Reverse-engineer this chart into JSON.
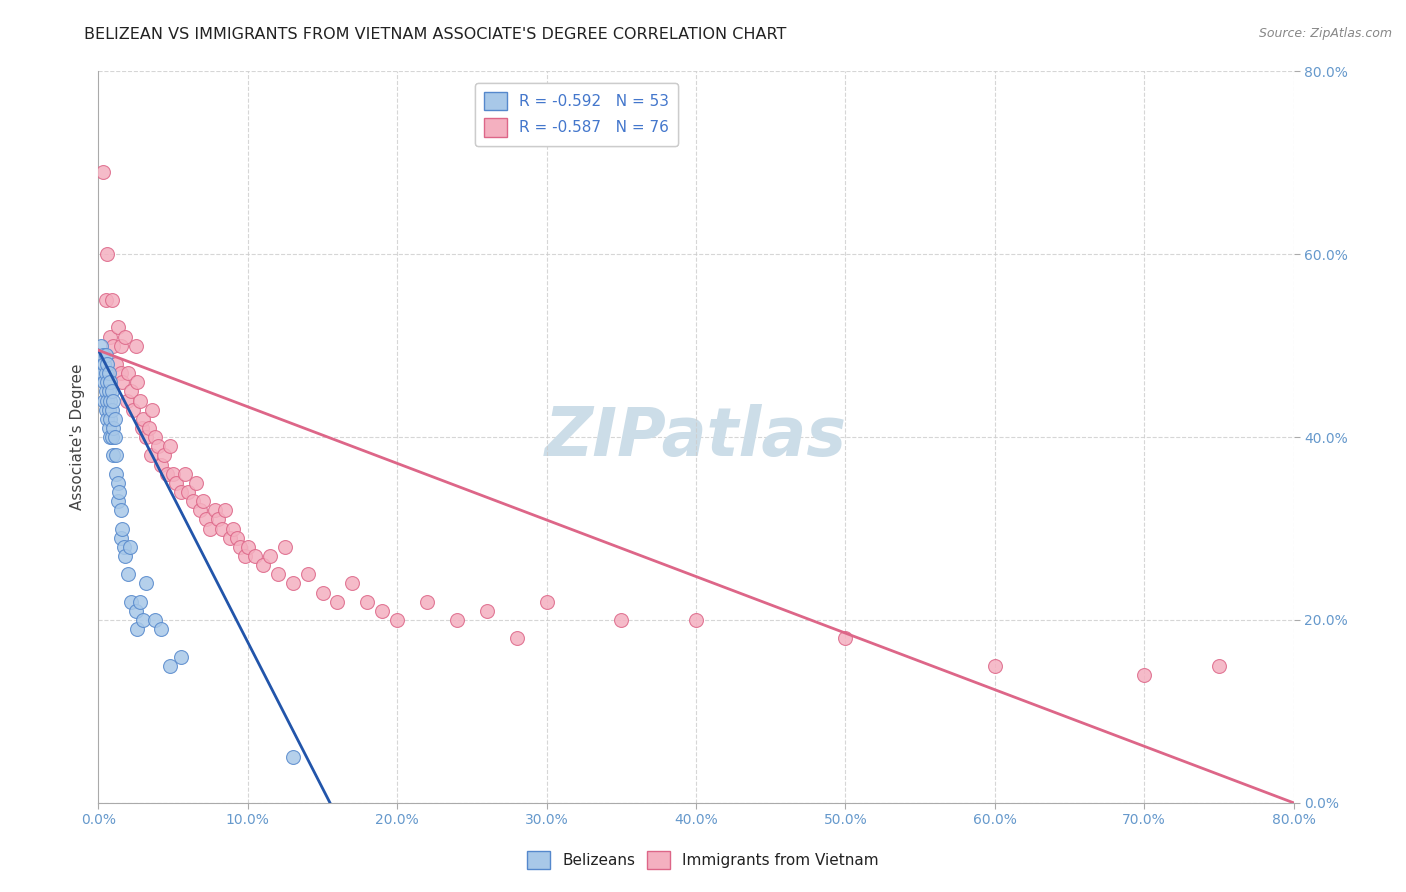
{
  "title": "BELIZEAN VS IMMIGRANTS FROM VIETNAM ASSOCIATE'S DEGREE CORRELATION CHART",
  "source": "Source: ZipAtlas.com",
  "ylabel": "Associate's Degree",
  "x_tick_labels": [
    "0.0%",
    "10.0%",
    "20.0%",
    "30.0%",
    "40.0%",
    "50.0%",
    "60.0%",
    "70.0%",
    "80.0%"
  ],
  "y_tick_labels": [
    "0.0%",
    "20.0%",
    "40.0%",
    "60.0%",
    "80.0%"
  ],
  "x_ticks": [
    0.0,
    0.1,
    0.2,
    0.3,
    0.4,
    0.5,
    0.6,
    0.7,
    0.8
  ],
  "y_ticks": [
    0.0,
    0.2,
    0.4,
    0.6,
    0.8
  ],
  "x_min": 0.0,
  "x_max": 0.8,
  "y_min": 0.0,
  "y_max": 0.8,
  "watermark": "ZIPatlas",
  "belizeans": {
    "color": "#a8c8e8",
    "edge_color": "#5588cc",
    "R": -0.592,
    "N": 53,
    "x": [
      0.002,
      0.003,
      0.003,
      0.004,
      0.004,
      0.004,
      0.005,
      0.005,
      0.005,
      0.005,
      0.006,
      0.006,
      0.006,
      0.006,
      0.007,
      0.007,
      0.007,
      0.007,
      0.008,
      0.008,
      0.008,
      0.008,
      0.009,
      0.009,
      0.009,
      0.01,
      0.01,
      0.01,
      0.011,
      0.011,
      0.012,
      0.012,
      0.013,
      0.013,
      0.014,
      0.015,
      0.015,
      0.016,
      0.017,
      0.018,
      0.02,
      0.021,
      0.022,
      0.025,
      0.026,
      0.028,
      0.03,
      0.032,
      0.038,
      0.042,
      0.048,
      0.055,
      0.13
    ],
    "y": [
      0.5,
      0.49,
      0.47,
      0.48,
      0.46,
      0.44,
      0.49,
      0.47,
      0.45,
      0.43,
      0.48,
      0.46,
      0.44,
      0.42,
      0.47,
      0.45,
      0.43,
      0.41,
      0.46,
      0.44,
      0.42,
      0.4,
      0.45,
      0.43,
      0.4,
      0.44,
      0.41,
      0.38,
      0.42,
      0.4,
      0.38,
      0.36,
      0.35,
      0.33,
      0.34,
      0.32,
      0.29,
      0.3,
      0.28,
      0.27,
      0.25,
      0.28,
      0.22,
      0.21,
      0.19,
      0.22,
      0.2,
      0.24,
      0.2,
      0.19,
      0.15,
      0.16,
      0.05
    ],
    "trendline_x": [
      0.0,
      0.155
    ],
    "trendline_y": [
      0.495,
      0.0
    ],
    "trend_color": "#2255aa"
  },
  "vietnam": {
    "color": "#f4b0c0",
    "edge_color": "#dd6688",
    "R": -0.587,
    "N": 76,
    "x": [
      0.003,
      0.005,
      0.006,
      0.008,
      0.009,
      0.01,
      0.012,
      0.013,
      0.015,
      0.015,
      0.016,
      0.018,
      0.019,
      0.02,
      0.022,
      0.023,
      0.025,
      0.026,
      0.028,
      0.029,
      0.03,
      0.032,
      0.034,
      0.035,
      0.036,
      0.038,
      0.04,
      0.042,
      0.044,
      0.046,
      0.048,
      0.05,
      0.052,
      0.055,
      0.058,
      0.06,
      0.063,
      0.065,
      0.068,
      0.07,
      0.072,
      0.075,
      0.078,
      0.08,
      0.083,
      0.085,
      0.088,
      0.09,
      0.093,
      0.095,
      0.098,
      0.1,
      0.105,
      0.11,
      0.115,
      0.12,
      0.125,
      0.13,
      0.14,
      0.15,
      0.16,
      0.17,
      0.18,
      0.19,
      0.2,
      0.22,
      0.24,
      0.26,
      0.28,
      0.3,
      0.35,
      0.4,
      0.5,
      0.6,
      0.7,
      0.75
    ],
    "y": [
      0.69,
      0.55,
      0.6,
      0.51,
      0.55,
      0.5,
      0.48,
      0.52,
      0.47,
      0.5,
      0.46,
      0.51,
      0.44,
      0.47,
      0.45,
      0.43,
      0.5,
      0.46,
      0.44,
      0.41,
      0.42,
      0.4,
      0.41,
      0.38,
      0.43,
      0.4,
      0.39,
      0.37,
      0.38,
      0.36,
      0.39,
      0.36,
      0.35,
      0.34,
      0.36,
      0.34,
      0.33,
      0.35,
      0.32,
      0.33,
      0.31,
      0.3,
      0.32,
      0.31,
      0.3,
      0.32,
      0.29,
      0.3,
      0.29,
      0.28,
      0.27,
      0.28,
      0.27,
      0.26,
      0.27,
      0.25,
      0.28,
      0.24,
      0.25,
      0.23,
      0.22,
      0.24,
      0.22,
      0.21,
      0.2,
      0.22,
      0.2,
      0.21,
      0.18,
      0.22,
      0.2,
      0.2,
      0.18,
      0.15,
      0.14,
      0.15
    ],
    "trendline_x": [
      0.0,
      0.8
    ],
    "trendline_y": [
      0.495,
      0.0
    ],
    "trend_color": "#dd6688"
  },
  "background_color": "#ffffff",
  "grid_color": "#cccccc",
  "title_fontsize": 11.5,
  "axis_label_fontsize": 11,
  "tick_fontsize": 10,
  "source_fontsize": 9,
  "watermark_fontsize": 48,
  "watermark_color": "#ccdde8",
  "legend_fontsize": 11,
  "tick_color": "#6699cc"
}
